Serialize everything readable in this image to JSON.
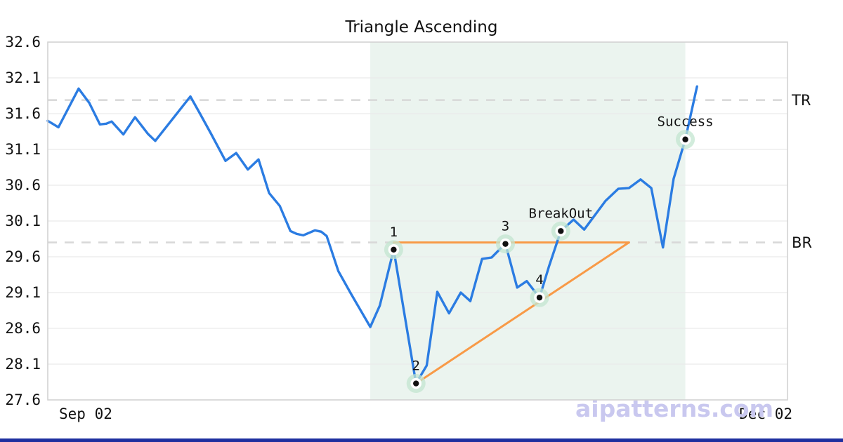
{
  "page": {
    "background": "#ffffff",
    "bottom_bar_color": "#1e2f9f"
  },
  "watermark": {
    "text": "© aipatterns.com",
    "color": "#c9c8ef"
  },
  "chart_data": {
    "type": "line",
    "title": "Triangle Ascending",
    "xlabel": "",
    "ylabel": "",
    "legend": false,
    "grid": true,
    "x_axis": {
      "domain": [
        0,
        69.5
      ],
      "start_label": "Sep 02",
      "end_label": "Dec 02"
    },
    "y_axis": {
      "domain": [
        27.6,
        32.6
      ],
      "ticks": [
        "32.6",
        "32.1",
        "31.6",
        "31.1",
        "30.6",
        "30.1",
        "29.6",
        "29.1",
        "28.6",
        "28.1",
        "27.6"
      ],
      "tick_values": [
        32.6,
        32.1,
        31.6,
        31.1,
        30.6,
        30.1,
        29.6,
        29.1,
        28.6,
        28.1,
        27.6
      ]
    },
    "levels": {
      "tr": {
        "label": "TR",
        "value": 31.79
      },
      "br": {
        "label": "BR",
        "value": 29.8
      },
      "line_color": "#d8d8d8"
    },
    "pattern_zone": {
      "x_start": 30.3,
      "x_end": 59.9,
      "color": "#ebf4ef"
    },
    "triangle": {
      "color": "#f89a47",
      "resistance": [
        [
          32.5,
          29.8
        ],
        [
          54.6,
          29.8
        ]
      ],
      "support": [
        [
          34.6,
          27.83
        ],
        [
          54.6,
          29.8
        ]
      ]
    },
    "series": [
      {
        "name": "price",
        "color": "#2b7ce2",
        "points": [
          [
            0,
            31.5
          ],
          [
            1,
            31.41
          ],
          [
            2.9,
            31.95
          ],
          [
            3.9,
            31.75
          ],
          [
            4.9,
            31.45
          ],
          [
            5.5,
            31.46
          ],
          [
            6,
            31.49
          ],
          [
            7.1,
            31.31
          ],
          [
            8.2,
            31.55
          ],
          [
            9.4,
            31.32
          ],
          [
            10.1,
            31.22
          ],
          [
            13.4,
            31.84
          ],
          [
            14.3,
            31.6
          ],
          [
            15.3,
            31.33
          ],
          [
            16.7,
            30.94
          ],
          [
            17.7,
            31.05
          ],
          [
            18.8,
            30.82
          ],
          [
            19.8,
            30.96
          ],
          [
            20.8,
            30.49
          ],
          [
            21.8,
            30.31
          ],
          [
            22.8,
            29.96
          ],
          [
            23.4,
            29.92
          ],
          [
            24,
            29.9
          ],
          [
            25.1,
            29.97
          ],
          [
            25.7,
            29.95
          ],
          [
            26.2,
            29.89
          ],
          [
            27.3,
            29.4
          ],
          [
            28.5,
            29.08
          ],
          [
            30.3,
            28.62
          ],
          [
            31.2,
            28.92
          ],
          [
            32.5,
            29.7
          ],
          [
            34.6,
            27.83
          ],
          [
            35.6,
            28.08
          ],
          [
            36.6,
            29.11
          ],
          [
            37.7,
            28.81
          ],
          [
            38.8,
            29.1
          ],
          [
            39.7,
            28.98
          ],
          [
            40.8,
            29.57
          ],
          [
            41.7,
            29.59
          ],
          [
            42.5,
            29.71
          ],
          [
            43,
            29.78
          ],
          [
            44.1,
            29.17
          ],
          [
            45,
            29.26
          ],
          [
            46.2,
            29.03
          ],
          [
            47.1,
            29.47
          ],
          [
            48.2,
            29.96
          ],
          [
            49.4,
            30.12
          ],
          [
            50.4,
            29.98
          ],
          [
            52.4,
            30.38
          ],
          [
            53.6,
            30.55
          ],
          [
            54.6,
            30.56
          ],
          [
            55.7,
            30.68
          ],
          [
            56.7,
            30.56
          ],
          [
            57.8,
            29.73
          ],
          [
            58.8,
            30.69
          ],
          [
            59.9,
            31.24
          ],
          [
            61,
            31.98
          ]
        ]
      }
    ],
    "markers": {
      "halo_color": "#c3e6d0",
      "ring_color": "#ffffff",
      "dot_color": "#111111"
    },
    "annotations": [
      {
        "label": "1",
        "x": 32.5,
        "y": 29.7
      },
      {
        "label": "2",
        "x": 34.6,
        "y": 27.83
      },
      {
        "label": "3",
        "x": 43.0,
        "y": 29.78
      },
      {
        "label": "4",
        "x": 46.2,
        "y": 29.03
      },
      {
        "label": "BreakOut",
        "x": 48.2,
        "y": 29.96
      },
      {
        "label": "Success",
        "x": 59.9,
        "y": 31.24
      }
    ],
    "grid_color": "#e9e9e9",
    "border_color": "#d2d2d2"
  }
}
